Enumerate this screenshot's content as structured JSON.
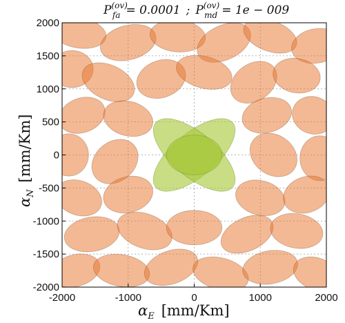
{
  "chart_data": {
    "type": "scatter",
    "title": {
      "p_fa_symbol": "P",
      "p_fa_superscript": "(ov)",
      "p_fa_subscript": "fa",
      "p_fa_value": "= 0.0001",
      "separator": ";",
      "p_md_symbol": "P",
      "p_md_superscript": "(ov)",
      "p_md_subscript": "md",
      "p_md_value": "= 1e − 009"
    },
    "xlabel": {
      "symbol": "α",
      "subscript": "E",
      "unit": "[mm/Km]"
    },
    "ylabel": {
      "symbol": "α",
      "subscript": "N",
      "unit": "[mm/Km]"
    },
    "xlim": [
      -2000,
      2000
    ],
    "ylim": [
      -2000,
      2000
    ],
    "grid": true,
    "xticks": [
      "-2000",
      "-1000",
      "0",
      "1000",
      "2000"
    ],
    "yticks": [
      "2000",
      "1500",
      "1000",
      "500",
      "0",
      "-500",
      "-1000",
      "-1500",
      "-2000"
    ],
    "colors": {
      "alarm_region": "#e8742a",
      "alarm_stroke": "#8a5a3a",
      "central_region": "#a8c83a",
      "central_stroke": "#6a8a20"
    },
    "series": [
      {
        "role": "alarm",
        "ellipses": [
          {
            "x": -1750,
            "y": 1850,
            "rx": 420,
            "ry": 230,
            "angle": -10
          },
          {
            "x": -1000,
            "y": 1700,
            "rx": 430,
            "ry": 260,
            "angle": 15
          },
          {
            "x": -250,
            "y": 1800,
            "rx": 420,
            "ry": 240,
            "angle": -5
          },
          {
            "x": 450,
            "y": 1700,
            "rx": 430,
            "ry": 260,
            "angle": 25
          },
          {
            "x": 1150,
            "y": 1800,
            "rx": 420,
            "ry": 230,
            "angle": -20
          },
          {
            "x": 1850,
            "y": 1650,
            "rx": 380,
            "ry": 260,
            "angle": 10
          },
          {
            "x": -1850,
            "y": 1300,
            "rx": 320,
            "ry": 280,
            "angle": 0
          },
          {
            "x": -1300,
            "y": 1100,
            "rx": 420,
            "ry": 260,
            "angle": -25
          },
          {
            "x": -500,
            "y": 1150,
            "rx": 380,
            "ry": 280,
            "angle": 20
          },
          {
            "x": 150,
            "y": 1250,
            "rx": 430,
            "ry": 240,
            "angle": -15
          },
          {
            "x": 900,
            "y": 1100,
            "rx": 380,
            "ry": 280,
            "angle": 35
          },
          {
            "x": 1550,
            "y": 1200,
            "rx": 360,
            "ry": 260,
            "angle": -10
          },
          {
            "x": -1700,
            "y": 600,
            "rx": 360,
            "ry": 260,
            "angle": 20
          },
          {
            "x": -1000,
            "y": 550,
            "rx": 380,
            "ry": 260,
            "angle": -15
          },
          {
            "x": 1100,
            "y": 600,
            "rx": 380,
            "ry": 260,
            "angle": 15
          },
          {
            "x": 1800,
            "y": 600,
            "rx": 320,
            "ry": 280,
            "angle": -20
          },
          {
            "x": -1900,
            "y": 0,
            "rx": 300,
            "ry": 320,
            "angle": 0
          },
          {
            "x": -1200,
            "y": -100,
            "rx": 380,
            "ry": 300,
            "angle": 40
          },
          {
            "x": 1200,
            "y": 0,
            "rx": 380,
            "ry": 300,
            "angle": -35
          },
          {
            "x": 1900,
            "y": -50,
            "rx": 300,
            "ry": 340,
            "angle": 0
          },
          {
            "x": -1750,
            "y": -650,
            "rx": 360,
            "ry": 260,
            "angle": -20
          },
          {
            "x": -1000,
            "y": -600,
            "rx": 380,
            "ry": 270,
            "angle": 15
          },
          {
            "x": 1000,
            "y": -650,
            "rx": 380,
            "ry": 260,
            "angle": -15
          },
          {
            "x": 1700,
            "y": -600,
            "rx": 360,
            "ry": 270,
            "angle": 20
          },
          {
            "x": -1550,
            "y": -1200,
            "rx": 420,
            "ry": 260,
            "angle": 10
          },
          {
            "x": -750,
            "y": -1150,
            "rx": 430,
            "ry": 260,
            "angle": -20
          },
          {
            "x": 0,
            "y": -1100,
            "rx": 420,
            "ry": 260,
            "angle": 0
          },
          {
            "x": 800,
            "y": -1200,
            "rx": 420,
            "ry": 250,
            "angle": 25
          },
          {
            "x": 1550,
            "y": -1150,
            "rx": 400,
            "ry": 260,
            "angle": -10
          },
          {
            "x": -1800,
            "y": -1750,
            "rx": 380,
            "ry": 240,
            "angle": 15
          },
          {
            "x": -1100,
            "y": -1750,
            "rx": 430,
            "ry": 240,
            "angle": -10
          },
          {
            "x": -350,
            "y": -1700,
            "rx": 420,
            "ry": 250,
            "angle": 20
          },
          {
            "x": 400,
            "y": -1800,
            "rx": 430,
            "ry": 240,
            "angle": -15
          },
          {
            "x": 1150,
            "y": -1700,
            "rx": 420,
            "ry": 250,
            "angle": 10
          },
          {
            "x": 1850,
            "y": -1800,
            "rx": 360,
            "ry": 240,
            "angle": -20
          }
        ]
      },
      {
        "role": "central",
        "ellipses": [
          {
            "x": 0,
            "y": 0,
            "rx": 760,
            "ry": 330,
            "angle": 40
          },
          {
            "x": 0,
            "y": 0,
            "rx": 760,
            "ry": 330,
            "angle": -40
          },
          {
            "x": 0,
            "y": 0,
            "rx": 420,
            "ry": 300,
            "angle": 0
          }
        ]
      }
    ]
  }
}
